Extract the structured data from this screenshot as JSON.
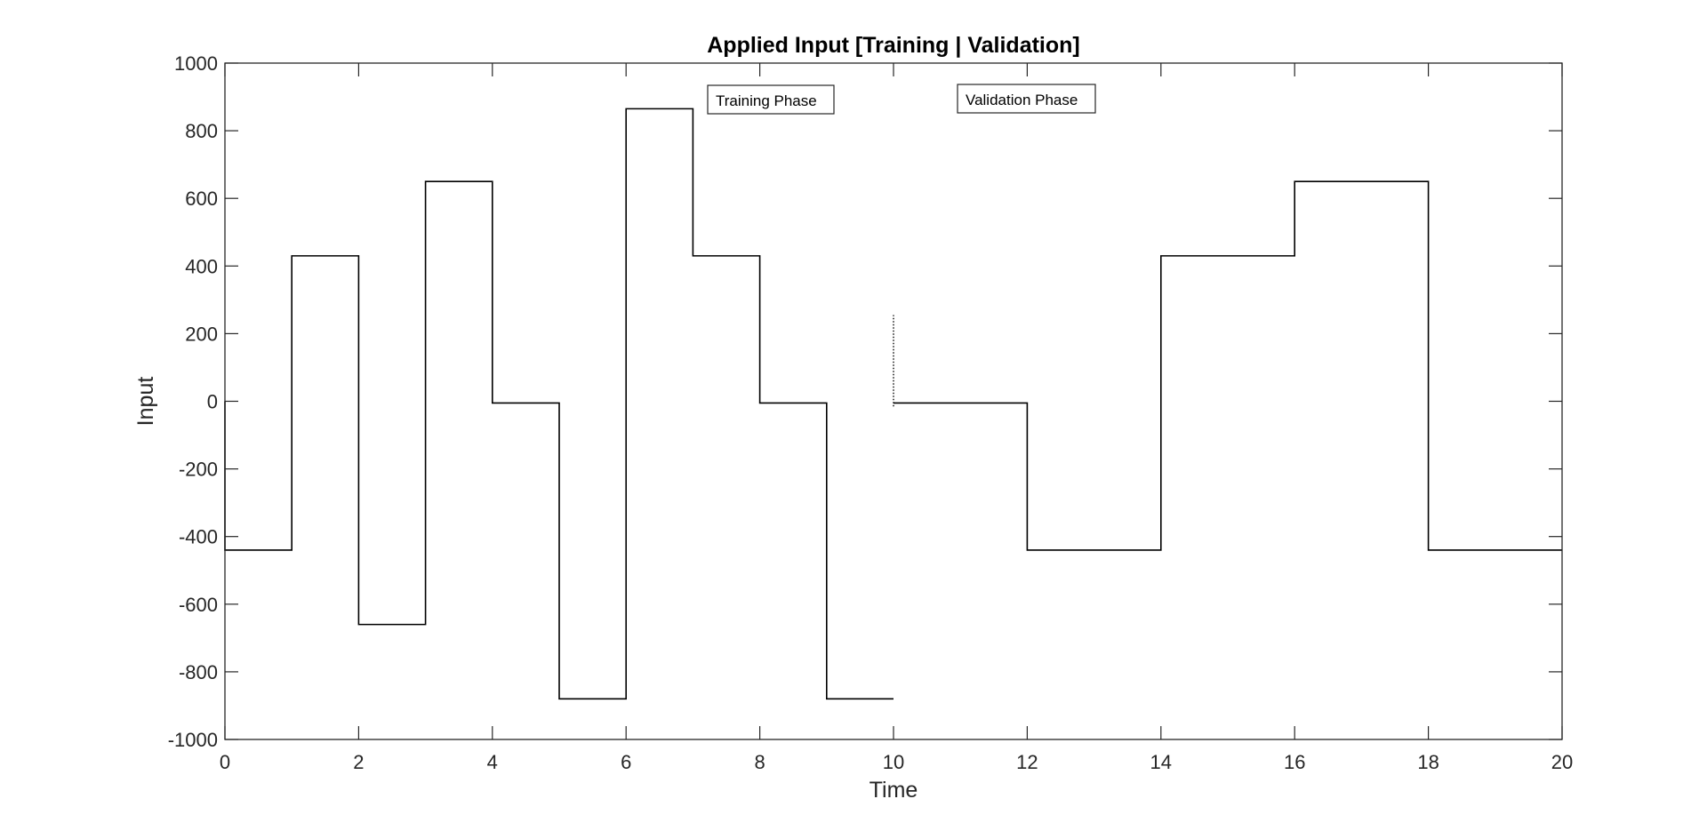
{
  "chart_data": {
    "type": "line",
    "title": "Applied Input [Training | Validation]",
    "xlabel": "Time",
    "ylabel": "Input",
    "xlim": [
      0,
      20
    ],
    "ylim": [
      -1000,
      1000
    ],
    "xticks": [
      0,
      2,
      4,
      6,
      8,
      10,
      12,
      14,
      16,
      18,
      20
    ],
    "yticks": [
      -1000,
      -800,
      -600,
      -400,
      -200,
      0,
      200,
      400,
      600,
      800,
      1000
    ],
    "grid": false,
    "line_color": "#000000",
    "series": [
      {
        "style": "step",
        "x": [
          0,
          0,
          1,
          1,
          2,
          2,
          3,
          3,
          4,
          4,
          5,
          5,
          6,
          6,
          7,
          7,
          8,
          8,
          9,
          9,
          10
        ],
        "y": [
          0,
          -440,
          -440,
          430,
          430,
          -660,
          -660,
          650,
          650,
          -5,
          -5,
          -880,
          -880,
          865,
          865,
          430,
          430,
          -5,
          -5,
          -880,
          -880
        ]
      },
      {
        "style": "dotted",
        "x": [
          10,
          10
        ],
        "y": [
          -15,
          255
        ]
      },
      {
        "style": "step",
        "x": [
          10,
          12,
          12,
          14,
          14,
          16,
          16,
          18,
          18,
          20
        ],
        "y": [
          -5,
          -5,
          -440,
          -440,
          430,
          430,
          650,
          650,
          -440,
          -440
        ]
      }
    ],
    "annotations": [
      {
        "text": "Training Phase"
      },
      {
        "text": "Validation Phase"
      }
    ]
  }
}
